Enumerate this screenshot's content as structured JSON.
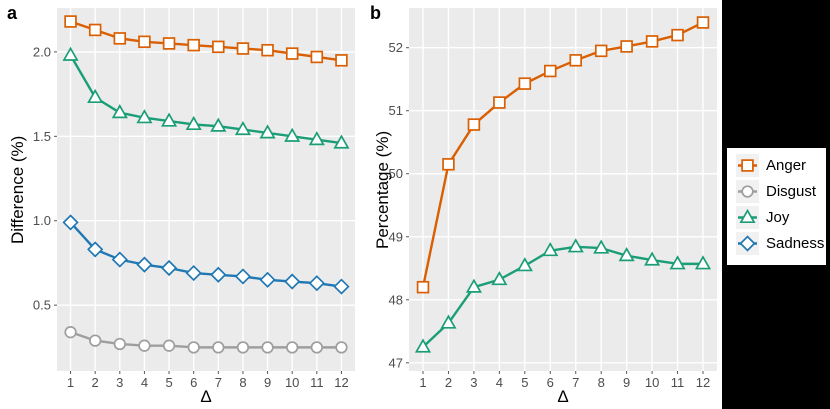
{
  "style": {
    "page_bg": "#000000",
    "figure_bg": "#FFFFFF",
    "panel_bg": "#EBEBEB",
    "grid_color": "#FFFFFF",
    "tick_mark_color": "#555555",
    "tick_label_color": "#4D4D4D",
    "legend_bg": "#FFFFFF",
    "legend_key_bg": "#F1F1F1"
  },
  "chart_data": [
    {
      "type": "line",
      "panel_label": "a",
      "xlabel": "Δ",
      "ylabel": "Difference (%)",
      "x": [
        1,
        2,
        3,
        4,
        5,
        6,
        7,
        8,
        9,
        10,
        11,
        12
      ],
      "xtick_labels": [
        "1",
        "2",
        "3",
        "4",
        "5",
        "6",
        "7",
        "8",
        "9",
        "10",
        "11",
        "12"
      ],
      "xlim": [
        0.45,
        12.55
      ],
      "ylim": [
        0.11,
        2.26
      ],
      "ytick_values": [
        0.5,
        1.0,
        1.5,
        2.0
      ],
      "ytick_labels": [
        "0.5",
        "1.0",
        "1.5",
        "2.0"
      ],
      "grid": true,
      "legend_position": "right-outside",
      "series": [
        {
          "name": "Anger",
          "marker": "square",
          "color": "#D95F02",
          "values": [
            2.18,
            2.13,
            2.08,
            2.06,
            2.05,
            2.04,
            2.03,
            2.02,
            2.01,
            1.99,
            1.97,
            1.95
          ]
        },
        {
          "name": "Disgust",
          "marker": "circle",
          "color": "#9E9E9E",
          "values": [
            0.34,
            0.29,
            0.27,
            0.26,
            0.26,
            0.25,
            0.25,
            0.25,
            0.25,
            0.25,
            0.25,
            0.25
          ]
        },
        {
          "name": "Joy",
          "marker": "triangle",
          "color": "#1B9E77",
          "values": [
            1.98,
            1.73,
            1.64,
            1.61,
            1.59,
            1.57,
            1.56,
            1.54,
            1.52,
            1.5,
            1.48,
            1.46
          ]
        },
        {
          "name": "Sadness",
          "marker": "diamond",
          "color": "#1F78B4",
          "values": [
            0.99,
            0.83,
            0.77,
            0.74,
            0.72,
            0.69,
            0.68,
            0.67,
            0.65,
            0.64,
            0.63,
            0.61
          ]
        }
      ]
    },
    {
      "type": "line",
      "panel_label": "b",
      "xlabel": "Δ",
      "ylabel": "Percentage (%)",
      "x": [
        1,
        2,
        3,
        4,
        5,
        6,
        7,
        8,
        9,
        10,
        11,
        12
      ],
      "xtick_labels": [
        "1",
        "2",
        "3",
        "4",
        "5",
        "6",
        "7",
        "8",
        "9",
        "10",
        "11",
        "12"
      ],
      "xlim": [
        0.45,
        12.55
      ],
      "ylim": [
        46.87,
        52.63
      ],
      "ytick_values": [
        47,
        48,
        49,
        50,
        51,
        52
      ],
      "ytick_labels": [
        "47",
        "48",
        "49",
        "50",
        "51",
        "52"
      ],
      "grid": true,
      "legend_position": "right-outside",
      "series": [
        {
          "name": "Anger",
          "marker": "square",
          "color": "#D95F02",
          "values": [
            48.2,
            50.15,
            50.78,
            51.13,
            51.43,
            51.63,
            51.8,
            51.95,
            52.02,
            52.1,
            52.2,
            52.4
          ]
        },
        {
          "name": "Joy",
          "marker": "triangle",
          "color": "#1B9E77",
          "values": [
            47.25,
            47.63,
            48.2,
            48.32,
            48.54,
            48.78,
            48.84,
            48.82,
            48.7,
            48.63,
            48.57,
            48.57
          ]
        }
      ]
    }
  ],
  "legend": {
    "items": [
      {
        "label": "Anger",
        "marker": "square",
        "color": "#D95F02"
      },
      {
        "label": "Disgust",
        "marker": "circle",
        "color": "#9E9E9E"
      },
      {
        "label": "Joy",
        "marker": "triangle",
        "color": "#1B9E77"
      },
      {
        "label": "Sadness",
        "marker": "diamond",
        "color": "#1F78B4"
      }
    ]
  }
}
